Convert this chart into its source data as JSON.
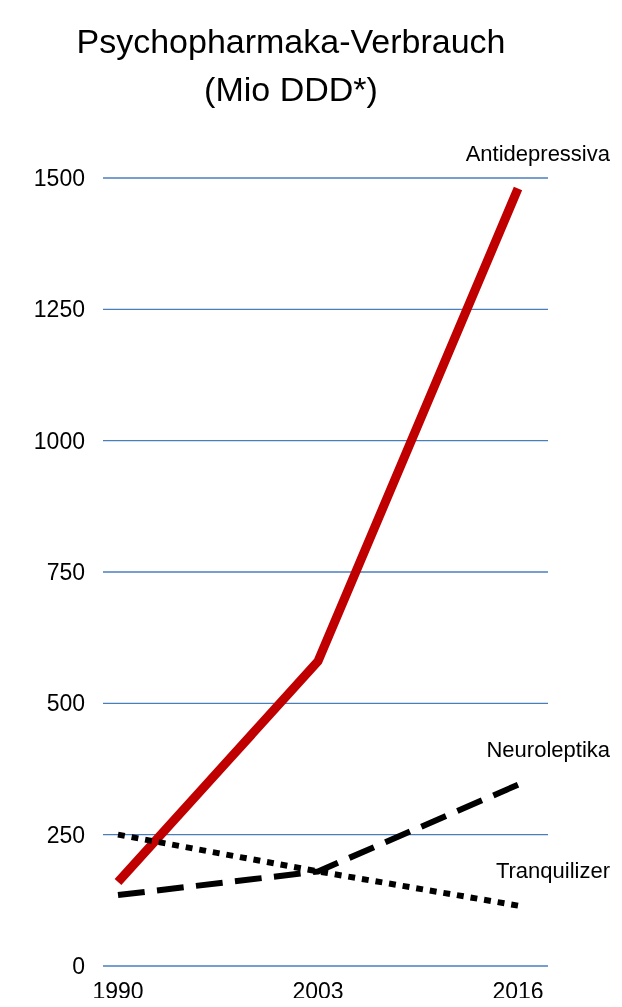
{
  "chart_data": {
    "type": "line",
    "title": "Psychopharmaka-Verbrauch",
    "subtitle": "(Mio DDD*)",
    "categories": [
      "1990",
      "2003",
      "2016"
    ],
    "ylim": [
      0,
      1500
    ],
    "yticks": [
      0,
      250,
      500,
      750,
      1000,
      1250,
      1500
    ],
    "grid": "y",
    "legend": false,
    "series": [
      {
        "name": "Antidepressiva",
        "color": "#c00000",
        "line_style": "solid",
        "values": [
          160,
          580,
          1480
        ]
      },
      {
        "name": "Neuroleptika",
        "color": "#000000",
        "line_style": "dashed",
        "values": [
          135,
          180,
          345
        ]
      },
      {
        "name": "Tranquilizer",
        "color": "#000000",
        "line_style": "dotted",
        "values": [
          250,
          180,
          115
        ]
      }
    ]
  }
}
